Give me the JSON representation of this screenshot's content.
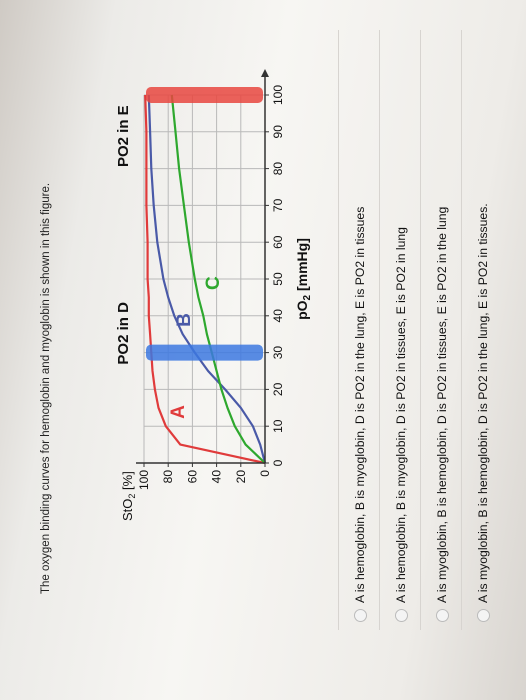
{
  "question": {
    "title": "The oxygen binding curves for hemoglobin and myoglobin is shown in this figure."
  },
  "figure": {
    "ylabel_main": "StO",
    "ylabel_sub": "2",
    "ylabel_unit": " [%]",
    "xlabel_main": "pO",
    "xlabel_sub": "2",
    "xlabel_unit": " [mmHg]",
    "bar_d_label": "PO2 in D",
    "bar_e_label": "PO2 in E",
    "curve_a_label": "A",
    "curve_b_label": "B",
    "curve_c_label": "C",
    "colors": {
      "curve_a": "#e03b3b",
      "curve_b": "#4a5aa8",
      "curve_c": "#2ea82e",
      "bar_d": "#3c78e0",
      "bar_e": "#e8473f",
      "grid": "#b9b9b9",
      "axis": "#333333"
    }
  },
  "chart_data": {
    "type": "line",
    "x": [
      0,
      5,
      10,
      15,
      20,
      25,
      30,
      35,
      40,
      45,
      50,
      60,
      70,
      80,
      90,
      100
    ],
    "series": [
      {
        "name": "A",
        "values": [
          0,
          70,
          82,
          88,
          91,
          93,
          94,
          95,
          96,
          96,
          97,
          97,
          98,
          98,
          98,
          99
        ]
      },
      {
        "name": "B",
        "values": [
          0,
          4,
          10,
          20,
          33,
          47,
          58,
          68,
          75,
          80,
          84,
          89,
          92,
          94,
          95,
          96
        ]
      },
      {
        "name": "C",
        "values": [
          0,
          16,
          25,
          31,
          36,
          40,
          44,
          48,
          51,
          55,
          58,
          63,
          67,
          71,
          74,
          77
        ]
      }
    ],
    "bars": [
      {
        "label": "PO2 in D",
        "x": 30,
        "y_range": [
          0,
          100
        ]
      },
      {
        "label": "PO2 in E",
        "x": 100,
        "y_range": [
          0,
          100
        ]
      }
    ],
    "xlim": [
      0,
      100
    ],
    "ylim": [
      0,
      100
    ],
    "xticks": [
      "0",
      "10",
      "20",
      "30",
      "40",
      "50",
      "60",
      "70",
      "80",
      "90",
      "100"
    ],
    "yticks": [
      "0",
      "20",
      "40",
      "60",
      "80",
      "100"
    ],
    "xlabel": "pO2 [mmHg]",
    "ylabel": "StO2 [%]",
    "grid": true
  },
  "options": [
    {
      "label": "A is hemoglobin, B is myoglobin, D is PO2 in the lung, E is PO2 in tissues"
    },
    {
      "label": "A is hemoglobin, B is myoglobin, D is PO2 in tissues, E is PO2 in lung"
    },
    {
      "label": "A is myoglobin, B is hemoglobin, D is PO2 in tissues, E is PO2 in the lung"
    },
    {
      "label": "A is myoglobin, B is hemoglobin, D is PO2 in the lung, E is PO2 in tissues."
    }
  ]
}
